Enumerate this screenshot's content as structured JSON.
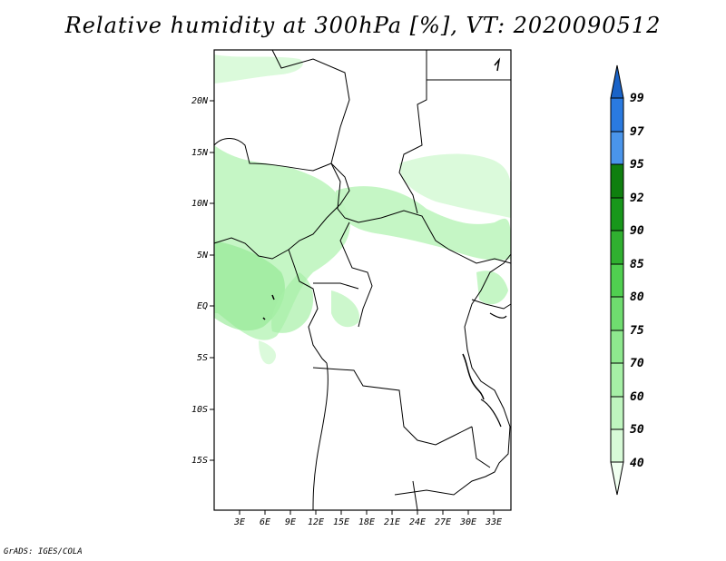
{
  "title": "Relative humidity at 300hPa [%], VT: 2020090512",
  "credit": "GrADS: IGES/COLA",
  "map": {
    "lon_labels": [
      "3E",
      "6E",
      "9E",
      "12E",
      "15E",
      "18E",
      "21E",
      "24E",
      "27E",
      "30E",
      "33E"
    ],
    "lat_labels": [
      "20N",
      "15N",
      "10N",
      "5N",
      "EQ",
      "5S",
      "10S",
      "15S"
    ]
  },
  "colorbar": {
    "levels": [
      "40",
      "50",
      "60",
      "70",
      "75",
      "80",
      "85",
      "90",
      "92",
      "95",
      "97",
      "99"
    ],
    "colors": [
      "#f0fff0",
      "#d7fad7",
      "#bff5bf",
      "#a6f0a6",
      "#8ee88e",
      "#6fdc6f",
      "#50cf50",
      "#30b030",
      "#18971b",
      "#0f7f0f",
      "#4a95eb",
      "#2a7ae0",
      "#1963c8"
    ]
  }
}
